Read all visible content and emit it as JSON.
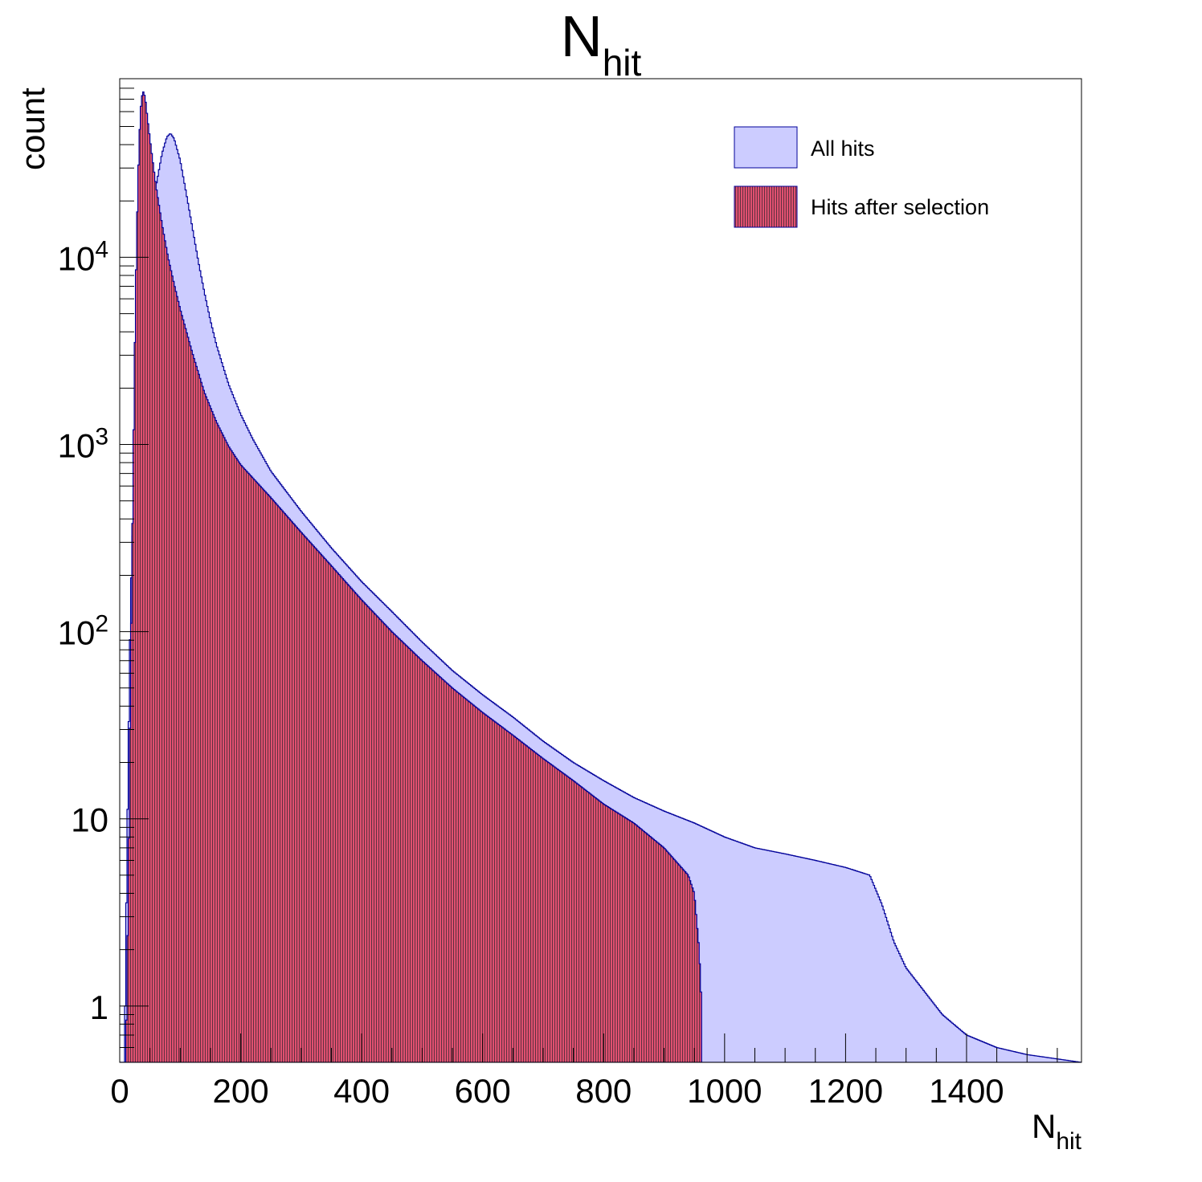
{
  "chart_data": {
    "type": "histogram",
    "title": {
      "main": "N",
      "sub": "hit"
    },
    "xlabel": {
      "main": "N",
      "sub": "hit"
    },
    "ylabel": "count",
    "xlim": [
      0,
      1590
    ],
    "ylim": [
      0.5,
      90000
    ],
    "y_scale": "log",
    "grid": false,
    "legend_position": "top-right",
    "x_ticks": [
      0,
      200,
      400,
      600,
      800,
      1000,
      1200,
      1400
    ],
    "x_tick_labels": [
      "0",
      "200",
      "400",
      "600",
      "800",
      "1000",
      "1200",
      "1400"
    ],
    "y_ticks": [
      {
        "value": 1,
        "base": "1",
        "exp": ""
      },
      {
        "value": 10,
        "base": "10",
        "exp": ""
      },
      {
        "value": 100,
        "base": "10",
        "exp": "2"
      },
      {
        "value": 1000,
        "base": "10",
        "exp": "3"
      },
      {
        "value": 10000,
        "base": "10",
        "exp": "4"
      }
    ],
    "bin_width": 2,
    "series": [
      {
        "name": "All hits",
        "fill": "#ccccff",
        "line": "#000099",
        "hatched": false,
        "points": [
          [
            0,
            0
          ],
          [
            8,
            0
          ],
          [
            10,
            2
          ],
          [
            14,
            20
          ],
          [
            18,
            150
          ],
          [
            24,
            700
          ],
          [
            30,
            2000
          ],
          [
            40,
            6500
          ],
          [
            50,
            14000
          ],
          [
            60,
            24000
          ],
          [
            70,
            36000
          ],
          [
            78,
            44000
          ],
          [
            84,
            46000
          ],
          [
            90,
            43000
          ],
          [
            100,
            33000
          ],
          [
            110,
            22000
          ],
          [
            120,
            14500
          ],
          [
            130,
            9500
          ],
          [
            140,
            6500
          ],
          [
            150,
            4600
          ],
          [
            160,
            3400
          ],
          [
            180,
            2100
          ],
          [
            200,
            1450
          ],
          [
            220,
            1070
          ],
          [
            250,
            720
          ],
          [
            300,
            440
          ],
          [
            350,
            280
          ],
          [
            400,
            185
          ],
          [
            450,
            128
          ],
          [
            500,
            88
          ],
          [
            550,
            62
          ],
          [
            600,
            46
          ],
          [
            650,
            35
          ],
          [
            700,
            26
          ],
          [
            750,
            20
          ],
          [
            800,
            16
          ],
          [
            850,
            13
          ],
          [
            900,
            11
          ],
          [
            950,
            9.5
          ],
          [
            1000,
            8
          ],
          [
            1050,
            7
          ],
          [
            1100,
            6.5
          ],
          [
            1150,
            6
          ],
          [
            1200,
            5.5
          ],
          [
            1240,
            5
          ],
          [
            1260,
            3.5
          ],
          [
            1280,
            2.2
          ],
          [
            1300,
            1.6
          ],
          [
            1330,
            1.2
          ],
          [
            1360,
            0.9
          ],
          [
            1400,
            0.7
          ],
          [
            1450,
            0.6
          ],
          [
            1500,
            0.55
          ],
          [
            1590,
            0.5
          ]
        ],
        "range": [
          0,
          1590
        ]
      },
      {
        "name": "Hits after selection",
        "fill": "#b25c6a",
        "line": "#000099",
        "hatched": true,
        "points": [
          [
            0,
            0
          ],
          [
            8,
            0
          ],
          [
            10,
            0.5
          ],
          [
            14,
            4
          ],
          [
            18,
            60
          ],
          [
            22,
            700
          ],
          [
            26,
            6000
          ],
          [
            30,
            25000
          ],
          [
            34,
            60000
          ],
          [
            38,
            78000
          ],
          [
            42,
            72000
          ],
          [
            46,
            55000
          ],
          [
            52,
            38000
          ],
          [
            60,
            24000
          ],
          [
            70,
            15000
          ],
          [
            80,
            10000
          ],
          [
            90,
            7200
          ],
          [
            100,
            5300
          ],
          [
            120,
            3100
          ],
          [
            140,
            1900
          ],
          [
            160,
            1320
          ],
          [
            180,
            980
          ],
          [
            200,
            780
          ],
          [
            250,
            520
          ],
          [
            300,
            340
          ],
          [
            350,
            225
          ],
          [
            400,
            148
          ],
          [
            450,
            100
          ],
          [
            500,
            70
          ],
          [
            550,
            50
          ],
          [
            600,
            37
          ],
          [
            650,
            28
          ],
          [
            700,
            21
          ],
          [
            750,
            16
          ],
          [
            800,
            12
          ],
          [
            850,
            9.5
          ],
          [
            900,
            7
          ],
          [
            940,
            5
          ],
          [
            950,
            4
          ],
          [
            958,
            2
          ],
          [
            962,
            1
          ],
          [
            1590,
            0
          ]
        ],
        "range": [
          0,
          962
        ]
      }
    ]
  }
}
